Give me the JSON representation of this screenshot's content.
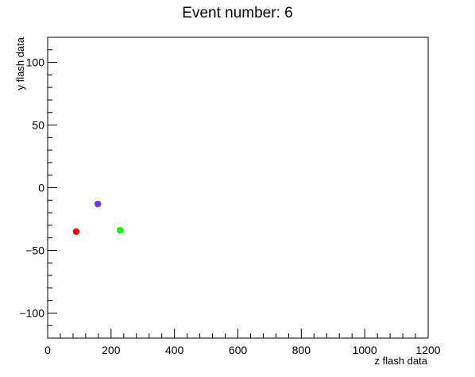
{
  "chart_data": {
    "type": "scatter",
    "title": "Event number: 6",
    "xlabel": "z flash data",
    "ylabel": "y flash data",
    "xlim": [
      0,
      1200
    ],
    "ylim": [
      -120,
      120
    ],
    "grid": false,
    "x_major_ticks": [
      0,
      200,
      400,
      600,
      800,
      1000,
      1200
    ],
    "x_tick_labels": [
      "0",
      "200",
      "400",
      "600",
      "800",
      "1000",
      "1200"
    ],
    "y_major_ticks": [
      -100,
      -50,
      0,
      50,
      100
    ],
    "y_tick_labels": [
      "−100",
      "−50",
      "0",
      "50",
      "100"
    ],
    "points": [
      {
        "x": 90,
        "y": -35,
        "color": "#ff0000"
      },
      {
        "x": 158,
        "y": -13,
        "color": "#6633ff"
      },
      {
        "x": 228,
        "y": -34,
        "color": "#00ff00"
      }
    ]
  }
}
